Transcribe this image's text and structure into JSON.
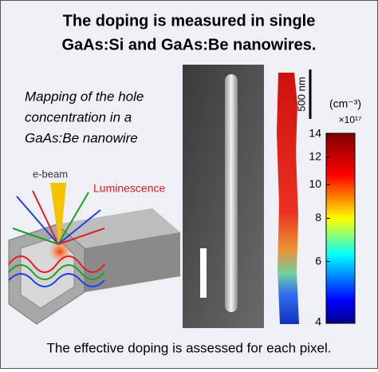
{
  "header": {
    "title_lines": [
      "The doping is measured in single",
      "GaAs:Si and GaAs:Be nanowires."
    ]
  },
  "caption": {
    "lines": [
      "Mapping of the hole",
      "concentration in a",
      "GaAs:Be nanowire"
    ]
  },
  "diagram": {
    "beam_label": "e-beam",
    "emission_label": "Luminescence"
  },
  "scale_bar": {
    "label": "500 nm"
  },
  "colorbar": {
    "unit": "(cm⁻³)",
    "multiplier": "×10¹⁷",
    "lim": [
      4,
      14
    ],
    "log": true,
    "ticks": [
      4,
      6,
      8,
      10,
      12,
      14
    ]
  },
  "footer": {
    "text": "The effective doping is assessed for each pixel."
  }
}
